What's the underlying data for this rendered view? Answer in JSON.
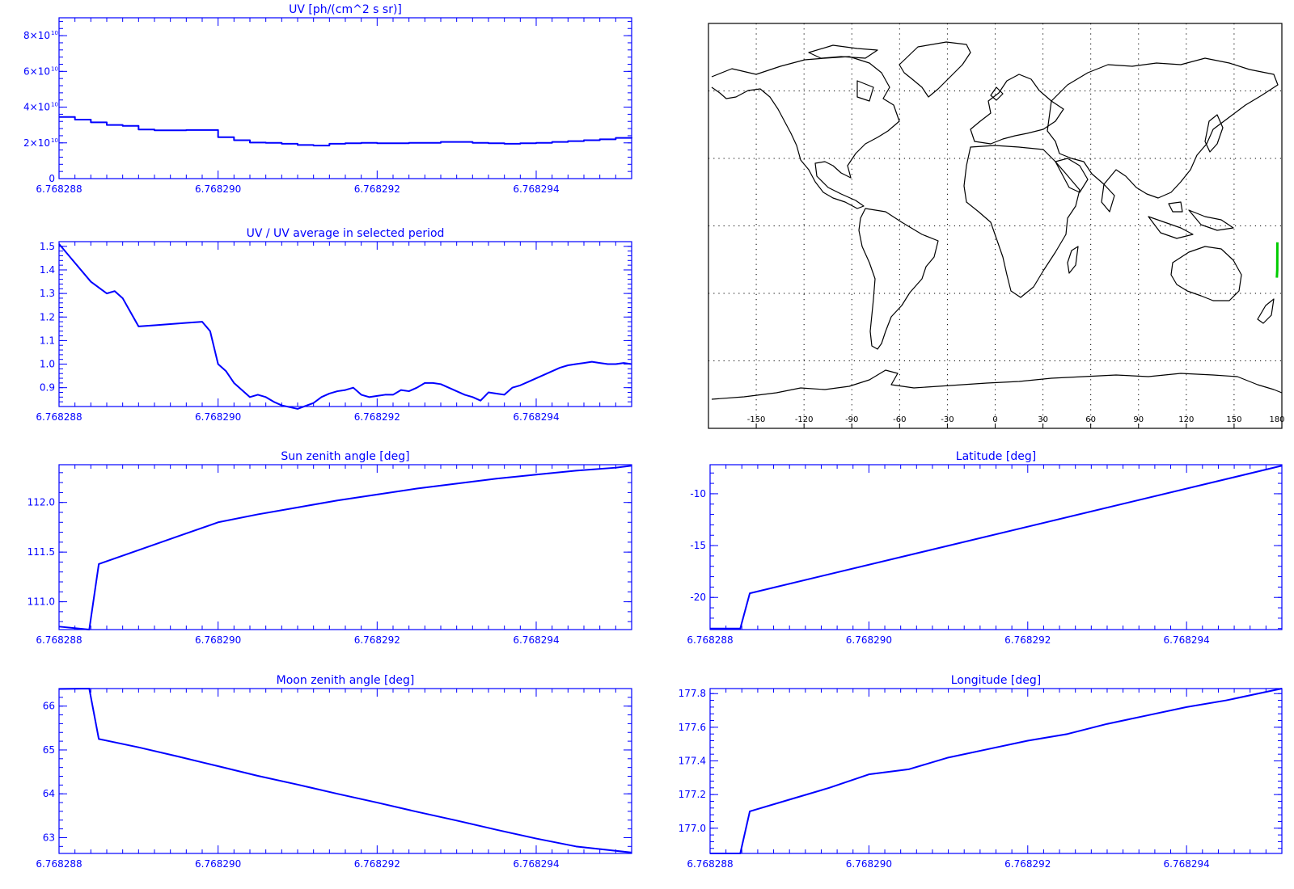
{
  "colors": {
    "line": "#0000ff",
    "axis": "#0000ff",
    "coast": "#000000",
    "grid": "#000000",
    "track": "#00cc00",
    "background": "#ffffff"
  },
  "x_tick_labels": [
    "6.768288",
    "6.768290",
    "6.768292",
    "6.768294"
  ],
  "uv_y_tick_labels": [
    "0",
    "2×10",
    "4×10",
    "6×10",
    "8×10"
  ],
  "uv_y_tick_exponent": "10",
  "map": {
    "lon_tick_labels": [
      "-150",
      "-120",
      "-90",
      "-60",
      "-30",
      "0",
      "30",
      "60",
      "90",
      "120",
      "150",
      "180"
    ],
    "grid": true,
    "track_color": "#00cc00"
  },
  "chart_data": [
    {
      "type": "line",
      "step": true,
      "title": "UV [ph/(cm^2 s sr)]",
      "x_range": [
        6.768288,
        6.7682952
      ],
      "ylim": [
        0,
        90000000000.0
      ],
      "y_ticks": [
        0,
        20000000000.0,
        40000000000.0,
        60000000000.0,
        80000000000.0
      ],
      "x": [
        6.768288,
        6.7682882,
        6.7682884,
        6.7682886,
        6.7682888,
        6.768289,
        6.7682892,
        6.7682894,
        6.7682896,
        6.7682898,
        6.76829,
        6.7682902,
        6.7682904,
        6.7682906,
        6.7682908,
        6.768291,
        6.7682912,
        6.7682914,
        6.7682916,
        6.7682918,
        6.768292,
        6.7682922,
        6.7682924,
        6.7682926,
        6.7682928,
        6.768293,
        6.7682932,
        6.7682934,
        6.7682936,
        6.7682938,
        6.768294,
        6.7682942,
        6.7682944,
        6.7682946,
        6.7682948,
        6.768295,
        6.7682952
      ],
      "y": [
        34500000000.0,
        33000000000.0,
        31500000000.0,
        30000000000.0,
        29500000000.0,
        27500000000.0,
        27000000000.0,
        27000000000.0,
        27200000000.0,
        27200000000.0,
        23200000000.0,
        21500000000.0,
        20200000000.0,
        20000000000.0,
        19500000000.0,
        18800000000.0,
        18500000000.0,
        19500000000.0,
        19800000000.0,
        20000000000.0,
        19800000000.0,
        19800000000.0,
        20000000000.0,
        20000000000.0,
        20500000000.0,
        20500000000.0,
        20000000000.0,
        19800000000.0,
        19500000000.0,
        19800000000.0,
        20000000000.0,
        20500000000.0,
        21000000000.0,
        21500000000.0,
        22000000000.0,
        22800000000.0,
        23000000000.0
      ]
    },
    {
      "type": "line",
      "title": "UV / UV average in selected period",
      "x_range": [
        6.768288,
        6.7682952
      ],
      "ylim": [
        0.82,
        1.52
      ],
      "y_ticks": [
        0.9,
        1.0,
        1.1,
        1.2,
        1.3,
        1.4,
        1.5
      ],
      "y_tick_labels": [
        "0.9",
        "1.0",
        "1.1",
        "1.2",
        "1.3",
        "1.4",
        "1.5"
      ],
      "x": [
        6.768288,
        6.7682882,
        6.7682884,
        6.7682886,
        6.7682887,
        6.7682888,
        6.768289,
        6.7682892,
        6.7682894,
        6.7682896,
        6.7682898,
        6.7682899,
        6.76829,
        6.7682901,
        6.7682902,
        6.7682903,
        6.7682904,
        6.7682905,
        6.7682906,
        6.7682907,
        6.7682908,
        6.768291,
        6.7682912,
        6.7682913,
        6.7682914,
        6.7682915,
        6.7682916,
        6.7682917,
        6.7682918,
        6.7682919,
        6.768292,
        6.7682921,
        6.7682922,
        6.7682923,
        6.7682924,
        6.7682925,
        6.7682926,
        6.7682927,
        6.7682928,
        6.7682929,
        6.768293,
        6.7682931,
        6.7682932,
        6.7682933,
        6.7682934,
        6.7682935,
        6.7682936,
        6.7682937,
        6.7682938,
        6.7682939,
        6.768294,
        6.7682941,
        6.7682942,
        6.7682943,
        6.7682944,
        6.7682945,
        6.7682946,
        6.7682947,
        6.7682948,
        6.7682949,
        6.768295,
        6.7682951,
        6.7682952
      ],
      "y": [
        1.51,
        1.43,
        1.35,
        1.3,
        1.31,
        1.28,
        1.16,
        1.165,
        1.17,
        1.175,
        1.18,
        1.14,
        1.0,
        0.97,
        0.92,
        0.89,
        0.86,
        0.87,
        0.86,
        0.84,
        0.825,
        0.81,
        0.835,
        0.86,
        0.875,
        0.885,
        0.89,
        0.9,
        0.87,
        0.86,
        0.865,
        0.87,
        0.87,
        0.89,
        0.885,
        0.9,
        0.92,
        0.92,
        0.915,
        0.9,
        0.885,
        0.87,
        0.86,
        0.845,
        0.88,
        0.875,
        0.87,
        0.9,
        0.91,
        0.925,
        0.94,
        0.955,
        0.97,
        0.985,
        0.995,
        1.0,
        1.005,
        1.01,
        1.005,
        1.0,
        1.0,
        1.005,
        1.0
      ]
    },
    {
      "type": "line",
      "title": "Sun zenith angle [deg]",
      "x_range": [
        6.768288,
        6.7682952
      ],
      "ylim": [
        110.72,
        112.38
      ],
      "y_ticks": [
        111.0,
        111.5,
        112.0
      ],
      "y_tick_labels": [
        "111.0",
        "111.5",
        "112.0"
      ],
      "x": [
        6.768288,
        6.76828838,
        6.7682885,
        6.768289,
        6.7682895,
        6.76829,
        6.7682905,
        6.768291,
        6.7682915,
        6.768292,
        6.7682925,
        6.768293,
        6.7682935,
        6.768294,
        6.7682945,
        6.768295,
        6.7682952
      ],
      "y": [
        110.75,
        110.72,
        111.38,
        111.52,
        111.66,
        111.8,
        111.88,
        111.95,
        112.02,
        112.08,
        112.14,
        112.19,
        112.24,
        112.28,
        112.32,
        112.35,
        112.37
      ]
    },
    {
      "type": "line",
      "title": "Latitude [deg]",
      "x_range": [
        6.768288,
        6.7682952
      ],
      "ylim": [
        -23.1,
        -7.2
      ],
      "y_ticks": [
        -20,
        -15,
        -10
      ],
      "y_tick_labels": [
        "-20",
        "-15",
        "-10"
      ],
      "x": [
        6.768288,
        6.76828838,
        6.7682885,
        6.7682952
      ],
      "y": [
        -23.0,
        -23.0,
        -19.6,
        -7.3
      ]
    },
    {
      "type": "line",
      "title": "Moon zenith angle [deg]",
      "x_range": [
        6.768288,
        6.7682952
      ],
      "ylim": [
        62.64,
        66.4
      ],
      "y_ticks": [
        63,
        64,
        65,
        66
      ],
      "y_tick_labels": [
        "63",
        "64",
        "65",
        "66"
      ],
      "x": [
        6.768288,
        6.76828838,
        6.7682885,
        6.768289,
        6.7682895,
        6.76829,
        6.7682905,
        6.768291,
        6.7682915,
        6.768292,
        6.7682925,
        6.768293,
        6.7682935,
        6.768294,
        6.7682945,
        6.768295,
        6.7682952
      ],
      "y": [
        66.39,
        66.4,
        65.25,
        65.06,
        64.85,
        64.63,
        64.41,
        64.21,
        64.0,
        63.8,
        63.59,
        63.39,
        63.18,
        62.98,
        62.8,
        62.7,
        62.66
      ]
    },
    {
      "type": "line",
      "title": "Longitude [deg]",
      "x_range": [
        6.768288,
        6.7682952
      ],
      "ylim": [
        176.85,
        177.83
      ],
      "y_ticks": [
        177.0,
        177.2,
        177.4,
        177.6,
        177.8
      ],
      "y_tick_labels": [
        "177.0",
        "177.2",
        "177.4",
        "177.6",
        "177.8"
      ],
      "x": [
        6.768288,
        6.76828838,
        6.7682885,
        6.768289,
        6.7682895,
        6.76829,
        6.7682905,
        6.768291,
        6.7682915,
        6.768292,
        6.7682925,
        6.768293,
        6.7682935,
        6.768294,
        6.7682945,
        6.768295,
        6.7682952
      ],
      "y": [
        176.85,
        176.85,
        177.1,
        177.17,
        177.24,
        177.32,
        177.35,
        177.42,
        177.47,
        177.52,
        177.56,
        177.62,
        177.67,
        177.72,
        177.76,
        177.81,
        177.83
      ]
    }
  ]
}
